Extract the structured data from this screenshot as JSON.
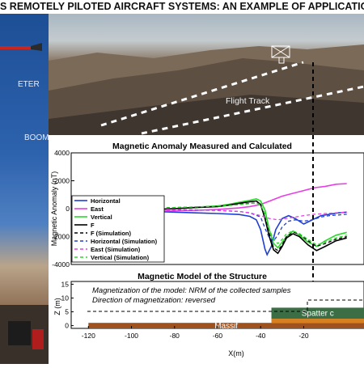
{
  "banner": {
    "title": "S REMOTELY PILOTED AIRCRAFT SYSTEMS: AN EXAMPLE OF APPLICATION"
  },
  "left_panel": {
    "label_meter": "ETER",
    "label_boom": "BOOM"
  },
  "photo": {
    "flight_track_label": "Flight Track"
  },
  "colors": {
    "horizontal": "#1f3fd1",
    "east": "#e83ee6",
    "vertical": "#2ed62e",
    "f": "#000000",
    "spatter": "#3b6e45",
    "massif": "#a0521e",
    "orange_layer": "#d87f1f"
  },
  "chart_data": [
    {
      "type": "line",
      "title": "Magnetic Anomaly Measured and Calculated",
      "xlabel": "",
      "ylabel": "Magnetic Anomaly (nT)",
      "xlim": [
        -128,
        8
      ],
      "ylim": [
        -4000,
        4000
      ],
      "yticks": [
        -4000,
        -2000,
        0,
        2000,
        4000
      ],
      "grid": false,
      "legend_position": "bottom-left",
      "series": [
        {
          "name": "Horizontal",
          "color_key": "horizontal",
          "style": "solid",
          "points": [
            [
              -110,
              -100
            ],
            [
              -100,
              -150
            ],
            [
              -90,
              -200
            ],
            [
              -80,
              -250
            ],
            [
              -70,
              -300
            ],
            [
              -60,
              -350
            ],
            [
              -50,
              -420
            ],
            [
              -45,
              -550
            ],
            [
              -42,
              -800
            ],
            [
              -40,
              -1500
            ],
            [
              -38,
              -2900
            ],
            [
              -37,
              -3300
            ],
            [
              -35,
              -2700
            ],
            [
              -33,
              -1500
            ],
            [
              -30,
              -700
            ],
            [
              -27,
              -500
            ],
            [
              -24,
              -700
            ],
            [
              -20,
              -1100
            ],
            [
              -16,
              -800
            ],
            [
              -12,
              -500
            ],
            [
              -8,
              -400
            ],
            [
              -4,
              -300
            ],
            [
              0,
              -250
            ]
          ]
        },
        {
          "name": "East",
          "color_key": "east",
          "style": "solid",
          "points": [
            [
              -110,
              -100
            ],
            [
              -100,
              -120
            ],
            [
              -90,
              -150
            ],
            [
              -80,
              -150
            ],
            [
              -70,
              -120
            ],
            [
              -60,
              -50
            ],
            [
              -50,
              50
            ],
            [
              -45,
              150
            ],
            [
              -40,
              300
            ],
            [
              -35,
              600
            ],
            [
              -30,
              900
            ],
            [
              -25,
              1100
            ],
            [
              -20,
              1300
            ],
            [
              -15,
              1500
            ],
            [
              -10,
              1600
            ],
            [
              -5,
              1750
            ],
            [
              0,
              1800
            ]
          ]
        },
        {
          "name": "Vertical",
          "color_key": "vertical",
          "style": "solid",
          "points": [
            [
              -110,
              -150
            ],
            [
              -100,
              -100
            ],
            [
              -90,
              -50
            ],
            [
              -80,
              0
            ],
            [
              -70,
              100
            ],
            [
              -60,
              200
            ],
            [
              -55,
              300
            ],
            [
              -50,
              450
            ],
            [
              -45,
              600
            ],
            [
              -42,
              700
            ],
            [
              -40,
              550
            ],
            [
              -38,
              -100
            ],
            [
              -36,
              -1500
            ],
            [
              -34,
              -2500
            ],
            [
              -32,
              -2800
            ],
            [
              -30,
              -2400
            ],
            [
              -28,
              -2000
            ],
            [
              -25,
              -1600
            ],
            [
              -22,
              -1900
            ],
            [
              -18,
              -2400
            ],
            [
              -14,
              -2700
            ],
            [
              -10,
              -2300
            ],
            [
              -5,
              -1900
            ],
            [
              0,
              -1700
            ]
          ]
        },
        {
          "name": "F",
          "color_key": "f",
          "style": "solid",
          "points": [
            [
              -110,
              -50
            ],
            [
              -100,
              -50
            ],
            [
              -90,
              -50
            ],
            [
              -80,
              0
            ],
            [
              -70,
              80
            ],
            [
              -60,
              150
            ],
            [
              -55,
              250
            ],
            [
              -50,
              380
            ],
            [
              -45,
              500
            ],
            [
              -42,
              550
            ],
            [
              -40,
              300
            ],
            [
              -38,
              -700
            ],
            [
              -36,
              -2000
            ],
            [
              -34,
              -2950
            ],
            [
              -32,
              -3200
            ],
            [
              -30,
              -2700
            ],
            [
              -28,
              -2100
            ],
            [
              -25,
              -1800
            ],
            [
              -22,
              -2000
            ],
            [
              -18,
              -2600
            ],
            [
              -14,
              -3000
            ],
            [
              -10,
              -2700
            ],
            [
              -5,
              -2300
            ],
            [
              0,
              -2100
            ]
          ]
        },
        {
          "name": "F (Simulation)",
          "color_key": "f",
          "style": "dashed",
          "points": [
            [
              -110,
              -30
            ],
            [
              -100,
              0
            ],
            [
              -90,
              40
            ],
            [
              -80,
              80
            ],
            [
              -70,
              120
            ],
            [
              -60,
              170
            ],
            [
              -55,
              230
            ],
            [
              -50,
              300
            ],
            [
              -45,
              380
            ],
            [
              -42,
              420
            ],
            [
              -40,
              300
            ],
            [
              -38,
              -500
            ],
            [
              -36,
              -1800
            ],
            [
              -34,
              -2800
            ],
            [
              -32,
              -3000
            ],
            [
              -30,
              -2600
            ],
            [
              -28,
              -2000
            ],
            [
              -25,
              -1700
            ],
            [
              -22,
              -1800
            ],
            [
              -18,
              -2300
            ],
            [
              -14,
              -2700
            ],
            [
              -10,
              -2500
            ],
            [
              -5,
              -2200
            ],
            [
              0,
              -2000
            ]
          ]
        },
        {
          "name": "Horizontal (Simulation)",
          "color_key": "horizontal",
          "style": "dashed",
          "points": [
            [
              -110,
              -20
            ],
            [
              -100,
              -40
            ],
            [
              -90,
              -60
            ],
            [
              -80,
              -80
            ],
            [
              -70,
              -100
            ],
            [
              -60,
              -130
            ],
            [
              -50,
              -200
            ],
            [
              -45,
              -300
            ],
            [
              -40,
              -600
            ],
            [
              -38,
              -1400
            ],
            [
              -36,
              -2100
            ],
            [
              -34,
              -2300
            ],
            [
              -32,
              -1900
            ],
            [
              -30,
              -1300
            ],
            [
              -27,
              -900
            ],
            [
              -24,
              -800
            ],
            [
              -20,
              -900
            ],
            [
              -16,
              -800
            ],
            [
              -12,
              -600
            ],
            [
              -8,
              -500
            ],
            [
              -4,
              -450
            ],
            [
              0,
              -400
            ]
          ]
        },
        {
          "name": "East (Simulation)",
          "color_key": "east",
          "style": "dashed",
          "points": [
            [
              -110,
              -10
            ],
            [
              -100,
              -20
            ],
            [
              -90,
              -40
            ],
            [
              -80,
              -60
            ],
            [
              -70,
              -80
            ],
            [
              -60,
              -120
            ],
            [
              -50,
              -200
            ],
            [
              -45,
              -300
            ],
            [
              -40,
              -500
            ],
            [
              -36,
              -700
            ],
            [
              -32,
              -800
            ],
            [
              -28,
              -700
            ],
            [
              -24,
              -600
            ],
            [
              -20,
              -500
            ],
            [
              -15,
              -400
            ],
            [
              -10,
              -350
            ],
            [
              -5,
              -300
            ],
            [
              0,
              -250
            ]
          ]
        },
        {
          "name": "Vertical (Simulation)",
          "color_key": "vertical",
          "style": "dashed",
          "points": [
            [
              -110,
              -20
            ],
            [
              -100,
              10
            ],
            [
              -90,
              40
            ],
            [
              -80,
              80
            ],
            [
              -70,
              120
            ],
            [
              -60,
              180
            ],
            [
              -55,
              220
            ],
            [
              -50,
              290
            ],
            [
              -45,
              360
            ],
            [
              -42,
              400
            ],
            [
              -40,
              280
            ],
            [
              -38,
              -400
            ],
            [
              -36,
              -1500
            ],
            [
              -34,
              -2200
            ],
            [
              -32,
              -2500
            ],
            [
              -30,
              -2200
            ],
            [
              -28,
              -1800
            ],
            [
              -25,
              -1600
            ],
            [
              -22,
              -1800
            ],
            [
              -18,
              -2200
            ],
            [
              -14,
              -2600
            ],
            [
              -10,
              -2400
            ],
            [
              -5,
              -2100
            ],
            [
              0,
              -1900
            ]
          ]
        }
      ]
    },
    {
      "type": "diagram",
      "title": "Magnetic Model of the Structure",
      "xlabel": "X(m)",
      "ylabel": "Z (m)",
      "xlim": [
        -128,
        8
      ],
      "ylim": [
        -1,
        16
      ],
      "xticks": [
        -120,
        -100,
        -80,
        -60,
        -40,
        -20
      ],
      "yticks": [
        0,
        5,
        10,
        15
      ],
      "annotation_lines": [
        "Magnetization of the model: NRM of the collected samples",
        "Direction of magnetization: reversed"
      ],
      "layers": [
        {
          "label": "Massif",
          "color_key": "massif",
          "x": [
            -120,
            8
          ],
          "z": [
            -1,
            1
          ]
        },
        {
          "label": "",
          "color_key": "orange_layer",
          "x": [
            -35,
            8
          ],
          "z": [
            1,
            2.5
          ]
        },
        {
          "label": "Spatter c",
          "color_key": "spatter",
          "x": [
            -35,
            8
          ],
          "z": [
            2.5,
            6.5
          ]
        }
      ]
    }
  ]
}
